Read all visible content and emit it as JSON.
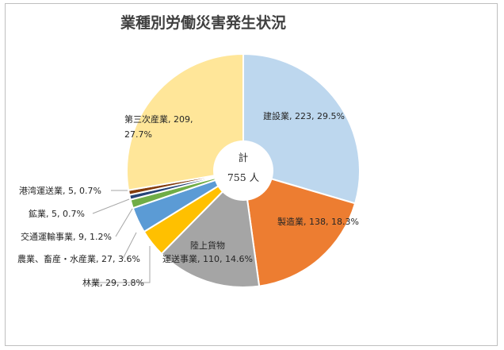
{
  "chart_data": {
    "type": "pie",
    "title": "業種別労働災害発生状況",
    "center_label": {
      "line1": "計",
      "line2": "755 人"
    },
    "total": 755,
    "slices": [
      {
        "name": "建設業",
        "value": 223,
        "percent": "29.5%",
        "color": "#bdd7ee",
        "label_lines": [
          "建設業, 223, 29.5%"
        ]
      },
      {
        "name": "製造業",
        "value": 138,
        "percent": "18.3%",
        "color": "#ed7d31",
        "label_lines": [
          "製造業, 138, 18.3%"
        ]
      },
      {
        "name": "陸上貨物運送事業",
        "value": 110,
        "percent": "14.6%",
        "color": "#a5a5a5",
        "label_lines": [
          "陸上貨物",
          "運送事業, 110, 14.6%"
        ]
      },
      {
        "name": "林業",
        "value": 29,
        "percent": "3.8%",
        "color": "#ffc000",
        "label_lines": [
          "林業, 29, 3.8%"
        ]
      },
      {
        "name": "農業、畜産・水産業",
        "value": 27,
        "percent": "3.6%",
        "color": "#5b9bd5",
        "label_lines": [
          "農業、畜産・水産業, 27, 3.6%"
        ]
      },
      {
        "name": "交通運輸事業",
        "value": 9,
        "percent": "1.2%",
        "color": "#70ad47",
        "label_lines": [
          "交通運輸事業, 9, 1.2%"
        ]
      },
      {
        "name": "鉱業",
        "value": 5,
        "percent": "0.7%",
        "color": "#264478",
        "label_lines": [
          "鉱業, 5, 0.7%"
        ]
      },
      {
        "name": "港湾運送業",
        "value": 5,
        "percent": "0.7%",
        "color": "#843c0c",
        "label_lines": [
          "港湾運送業, 5, 0.7%"
        ]
      },
      {
        "name": "第三次産業",
        "value": 209,
        "percent": "27.7%",
        "color": "#ffe699",
        "label_lines": [
          "第三次産業, 209,",
          "27.7%"
        ]
      }
    ]
  }
}
